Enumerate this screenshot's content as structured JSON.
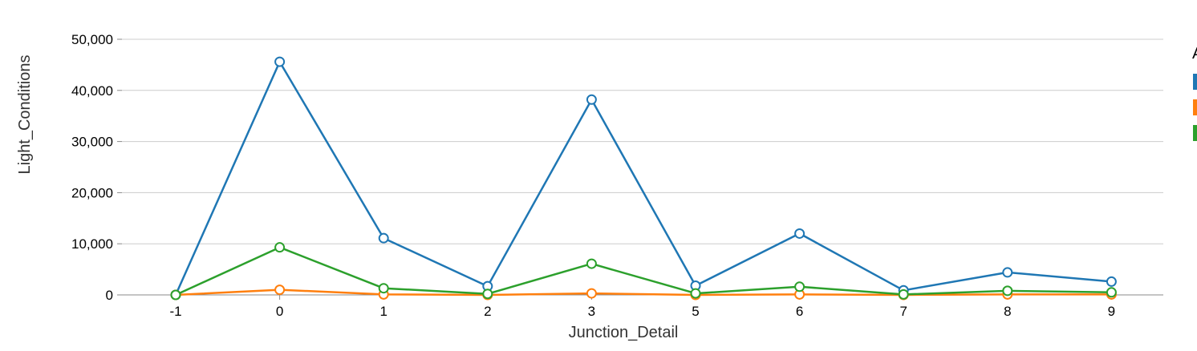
{
  "chart_data": {
    "type": "line",
    "xlabel": "Junction_Detail",
    "ylabel": "Light_Conditions",
    "categories": [
      "-1",
      "0",
      "1",
      "2",
      "3",
      "5",
      "6",
      "7",
      "8",
      "9"
    ],
    "ylim": [
      0,
      50000
    ],
    "yticks": [
      0,
      10000,
      20000,
      30000,
      40000,
      50000
    ],
    "ytick_labels": [
      "0",
      "10,000",
      "20,000",
      "30,000",
      "40,000",
      "50,000"
    ],
    "grid": true,
    "legend_position": "right",
    "legend_title": "A",
    "series": [
      {
        "color": "#1f77b4",
        "values": [
          0,
          45600,
          11100,
          1700,
          38200,
          1800,
          12000,
          900,
          4400,
          2600
        ]
      },
      {
        "color": "#ff7f0e",
        "values": [
          0,
          1000,
          100,
          0,
          300,
          0,
          100,
          0,
          100,
          100
        ]
      },
      {
        "color": "#2ca02c",
        "values": [
          0,
          9300,
          1300,
          200,
          6100,
          300,
          1600,
          100,
          800,
          500
        ]
      }
    ]
  }
}
